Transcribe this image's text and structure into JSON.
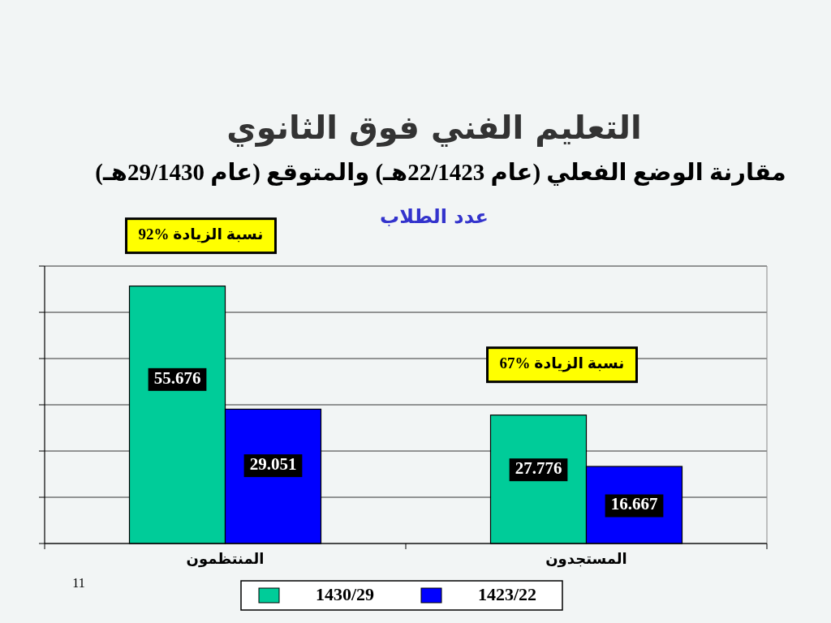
{
  "chart_data": {
    "type": "bar",
    "title": "التعليم الفني فوق الثانوي",
    "subtitle": "مقارنة الوضع الفعلي (عام 22/1423هـ) والمتوقع (عام 29/1430هـ)",
    "ylabel": "عدد الطلاب",
    "categories": [
      "المنتظمون",
      "المستجدون"
    ],
    "series": [
      {
        "name": "1430/29",
        "color": "#00cc99",
        "values": [
          55.676,
          27.776
        ]
      },
      {
        "name": "1423/22",
        "color": "#0000ff",
        "values": [
          29.051,
          16.667
        ]
      }
    ],
    "ylim": [
      0,
      60
    ],
    "yticks": [
      {
        "value": 0,
        "label": null
      },
      {
        "value": 10,
        "label": null
      },
      {
        "value": 20,
        "label": null
      },
      {
        "value": 30,
        "label": null
      },
      {
        "value": 40,
        "label": null
      },
      {
        "value": 50,
        "label": null
      },
      {
        "value": 60,
        "label": null
      }
    ],
    "grid": "y",
    "legend": "bottom",
    "data_labels": true,
    "tick_labels": "x",
    "annotations": [
      "نسبة الزيادة %92",
      "نسبة الزيادة %67",
      "11"
    ]
  }
}
